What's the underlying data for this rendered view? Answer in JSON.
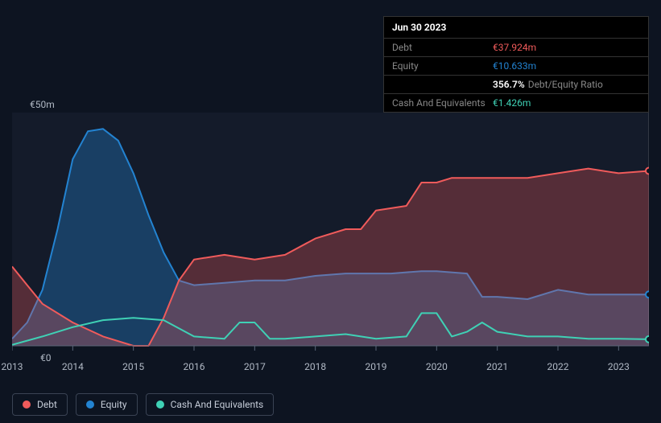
{
  "tooltip": {
    "date": "Jun 30 2023",
    "rows": [
      {
        "label": "Debt",
        "value": "€37.924m",
        "color": "#f05b5b"
      },
      {
        "label": "Equity",
        "value": "€10.633m",
        "color": "#2383d1"
      },
      {
        "label": "",
        "pct": "356.7%",
        "txt": "Debt/Equity Ratio"
      },
      {
        "label": "Cash And Equivalents",
        "value": "€1.426m",
        "color": "#3fd1b5"
      }
    ]
  },
  "chart": {
    "type": "area-line",
    "background_color": "#141b2a",
    "axis_color": "#5a6578",
    "cursor_x": 10.5,
    "x": {
      "min": 2013,
      "max": 2023.5,
      "ticks": [
        2013,
        2014,
        2015,
        2016,
        2017,
        2018,
        2019,
        2020,
        2021,
        2022,
        2023
      ]
    },
    "y": {
      "min": 0,
      "max": 50,
      "top_label": "€50m",
      "bottom_label": "€0"
    },
    "series": [
      {
        "name": "Equity",
        "color": "#2383d1",
        "fill_opacity": 0.35,
        "line_width": 2,
        "filled": true,
        "values": [
          [
            2013,
            1.5
          ],
          [
            2013.25,
            5
          ],
          [
            2013.5,
            12
          ],
          [
            2013.75,
            25
          ],
          [
            2014,
            40
          ],
          [
            2014.25,
            46
          ],
          [
            2014.5,
            46.5
          ],
          [
            2014.75,
            44
          ],
          [
            2015,
            37
          ],
          [
            2015.25,
            28
          ],
          [
            2015.5,
            20
          ],
          [
            2015.75,
            14
          ],
          [
            2016,
            13
          ],
          [
            2016.5,
            13.5
          ],
          [
            2017,
            14
          ],
          [
            2017.5,
            14
          ],
          [
            2018,
            15
          ],
          [
            2018.5,
            15.5
          ],
          [
            2019,
            15.5
          ],
          [
            2019.25,
            15.5
          ],
          [
            2019.75,
            16
          ],
          [
            2020,
            16
          ],
          [
            2020.5,
            15.5
          ],
          [
            2020.75,
            10.5
          ],
          [
            2021,
            10.5
          ],
          [
            2021.5,
            10
          ],
          [
            2022,
            12
          ],
          [
            2022.5,
            11
          ],
          [
            2023,
            11
          ],
          [
            2023.5,
            11
          ]
        ]
      },
      {
        "name": "Debt",
        "color": "#f05b5b",
        "fill_opacity": 0.3,
        "line_width": 2,
        "filled": true,
        "values": [
          [
            2013,
            17
          ],
          [
            2013.25,
            13
          ],
          [
            2013.5,
            9
          ],
          [
            2014,
            5
          ],
          [
            2014.5,
            2
          ],
          [
            2015,
            0
          ],
          [
            2015.25,
            0
          ],
          [
            2015.5,
            6
          ],
          [
            2015.75,
            14
          ],
          [
            2016,
            18.5
          ],
          [
            2016.5,
            19.5
          ],
          [
            2017,
            18.5
          ],
          [
            2017.5,
            19.5
          ],
          [
            2018,
            23
          ],
          [
            2018.5,
            25
          ],
          [
            2018.75,
            25
          ],
          [
            2019,
            29
          ],
          [
            2019.5,
            30
          ],
          [
            2019.75,
            35
          ],
          [
            2020,
            35
          ],
          [
            2020.25,
            36
          ],
          [
            2020.75,
            36
          ],
          [
            2021,
            36
          ],
          [
            2021.5,
            36
          ],
          [
            2022,
            37
          ],
          [
            2022.25,
            37.5
          ],
          [
            2022.5,
            38
          ],
          [
            2023,
            37
          ],
          [
            2023.5,
            37.5
          ]
        ]
      },
      {
        "name": "Cash And Equivalents",
        "color": "#3fd1b5",
        "fill_opacity": 0,
        "line_width": 2,
        "filled": false,
        "values": [
          [
            2013,
            0.2
          ],
          [
            2013.5,
            2
          ],
          [
            2014,
            4
          ],
          [
            2014.5,
            5.5
          ],
          [
            2015,
            6
          ],
          [
            2015.5,
            5.5
          ],
          [
            2016,
            2
          ],
          [
            2016.5,
            1.5
          ],
          [
            2016.75,
            5
          ],
          [
            2017,
            5
          ],
          [
            2017.25,
            1.5
          ],
          [
            2017.5,
            1.5
          ],
          [
            2018,
            2
          ],
          [
            2018.5,
            2.5
          ],
          [
            2018.75,
            2
          ],
          [
            2019,
            1.5
          ],
          [
            2019.5,
            2
          ],
          [
            2019.75,
            7
          ],
          [
            2020,
            7
          ],
          [
            2020.25,
            2
          ],
          [
            2020.5,
            3
          ],
          [
            2020.75,
            5
          ],
          [
            2021,
            3
          ],
          [
            2021.5,
            2
          ],
          [
            2022,
            2
          ],
          [
            2022.5,
            1.5
          ],
          [
            2023,
            1.5
          ],
          [
            2023.5,
            1.4
          ]
        ]
      }
    ],
    "legend": [
      {
        "label": "Debt",
        "color": "#f05b5b"
      },
      {
        "label": "Equity",
        "color": "#2383d1"
      },
      {
        "label": "Cash And Equivalents",
        "color": "#3fd1b5"
      }
    ]
  }
}
